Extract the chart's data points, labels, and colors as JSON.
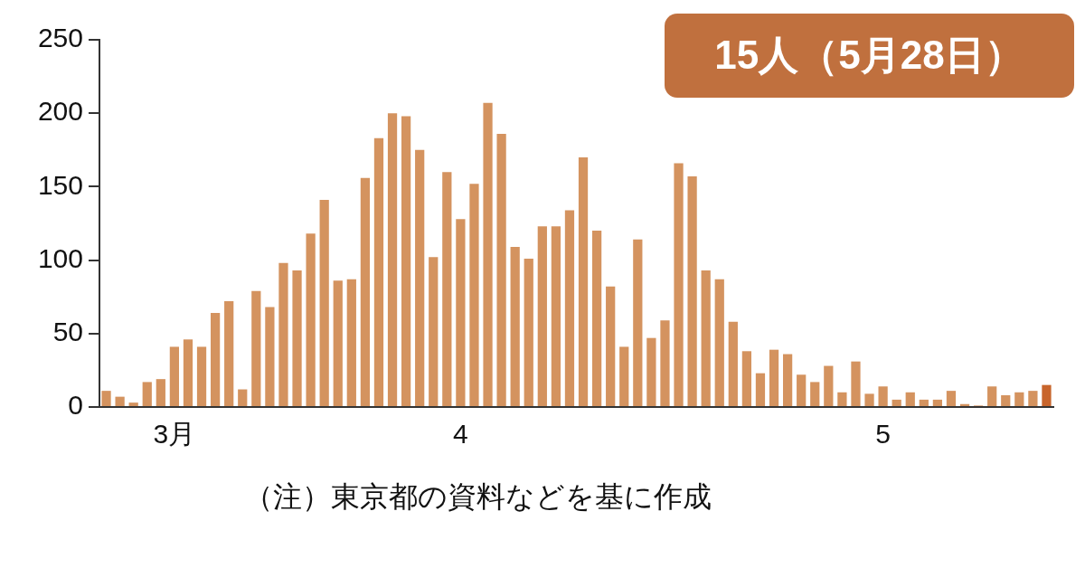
{
  "chart_data": {
    "type": "bar",
    "categories": [
      null,
      null,
      null,
      null,
      null,
      "3月",
      null,
      null,
      null,
      null,
      null,
      null,
      null,
      null,
      null,
      null,
      null,
      null,
      null,
      null,
      null,
      null,
      null,
      null,
      null,
      null,
      "4",
      null,
      null,
      null,
      null,
      null,
      null,
      null,
      null,
      null,
      null,
      null,
      null,
      null,
      null,
      null,
      null,
      null,
      null,
      null,
      null,
      null,
      null,
      null,
      null,
      null,
      null,
      null,
      null,
      null,
      null,
      "5",
      null,
      null,
      null,
      null,
      null,
      null,
      null,
      null,
      null,
      null,
      null,
      null
    ],
    "values": [
      11,
      7,
      3,
      17,
      19,
      41,
      46,
      41,
      64,
      72,
      12,
      79,
      68,
      98,
      93,
      118,
      141,
      86,
      87,
      156,
      183,
      200,
      198,
      175,
      102,
      160,
      128,
      152,
      207,
      186,
      109,
      101,
      123,
      123,
      134,
      170,
      120,
      82,
      41,
      114,
      47,
      59,
      166,
      157,
      93,
      87,
      58,
      38,
      23,
      39,
      36,
      22,
      17,
      28,
      10,
      31,
      9,
      14,
      5,
      10,
      5,
      5,
      11,
      2,
      1,
      14,
      8,
      10,
      11,
      15
    ],
    "colors": [
      "#d4935f",
      "#d4935f",
      "#d4935f",
      "#d4935f",
      "#d4935f",
      "#d4935f",
      "#d4935f",
      "#d4935f",
      "#d4935f",
      "#d4935f",
      "#d4935f",
      "#d4935f",
      "#d4935f",
      "#d4935f",
      "#d4935f",
      "#d4935f",
      "#d4935f",
      "#d4935f",
      "#d4935f",
      "#d4935f",
      "#d4935f",
      "#d4935f",
      "#d4935f",
      "#d4935f",
      "#d4935f",
      "#d4935f",
      "#d4935f",
      "#d4935f",
      "#d4935f",
      "#d4935f",
      "#d4935f",
      "#d4935f",
      "#d4935f",
      "#d4935f",
      "#d4935f",
      "#d4935f",
      "#d4935f",
      "#d4935f",
      "#d4935f",
      "#d4935f",
      "#d4935f",
      "#d4935f",
      "#d4935f",
      "#d4935f",
      "#d4935f",
      "#d4935f",
      "#d4935f",
      "#d4935f",
      "#d4935f",
      "#d4935f",
      "#d4935f",
      "#d4935f",
      "#d4935f",
      "#d4935f",
      "#d4935f",
      "#d4935f",
      "#d4935f",
      "#d4935f",
      "#d4935f",
      "#d4935f",
      "#d4935f",
      "#d4935f",
      "#d4935f",
      "#d4935f",
      "#d4935f",
      "#d4935f",
      "#d4935f",
      "#d4935f",
      "#d4935f",
      "#c8652c"
    ],
    "ylim": [
      0,
      250
    ],
    "yticks": [
      0,
      50,
      100,
      150,
      200,
      250
    ],
    "grid": false,
    "annotations": [
      "15人（5月28日）",
      "（注）東京都の資料などを基に作成"
    ]
  }
}
